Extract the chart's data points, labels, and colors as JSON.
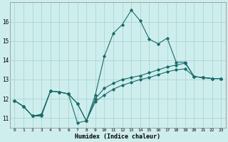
{
  "xlabel": "Humidex (Indice chaleur)",
  "background_color": "#ceeeed",
  "grid_color": "#aad4d4",
  "line_color": "#1a6b6b",
  "xlim": [
    -0.5,
    23.5
  ],
  "ylim": [
    10.5,
    17.0
  ],
  "yticks": [
    11,
    12,
    13,
    14,
    15,
    16
  ],
  "xticks": [
    0,
    1,
    2,
    3,
    4,
    5,
    6,
    7,
    8,
    9,
    10,
    11,
    12,
    13,
    14,
    15,
    16,
    17,
    18,
    19,
    20,
    21,
    22,
    23
  ],
  "line1_x": [
    0,
    1,
    2,
    3,
    4,
    5,
    6,
    7,
    8,
    9,
    10,
    11,
    12,
    13,
    14,
    15,
    16,
    17,
    18,
    19,
    20,
    21,
    22,
    23
  ],
  "line1_y": [
    11.9,
    11.6,
    11.1,
    11.2,
    12.4,
    12.35,
    12.25,
    10.75,
    10.85,
    12.2,
    14.2,
    15.4,
    15.85,
    16.6,
    16.05,
    15.1,
    14.85,
    15.15,
    13.9,
    13.9,
    13.15,
    13.1,
    13.05,
    13.05
  ],
  "line2_x": [
    0,
    1,
    2,
    3,
    4,
    5,
    6,
    7,
    8,
    9,
    10,
    11,
    12,
    13,
    14,
    15,
    16,
    17,
    18,
    19,
    20,
    21,
    22,
    23
  ],
  "line2_y": [
    11.9,
    11.6,
    11.1,
    11.15,
    12.4,
    12.35,
    12.25,
    11.75,
    10.85,
    12.0,
    12.55,
    12.8,
    13.0,
    13.1,
    13.2,
    13.35,
    13.5,
    13.65,
    13.75,
    13.85,
    13.15,
    13.1,
    13.05,
    13.05
  ],
  "line3_x": [
    0,
    1,
    2,
    3,
    4,
    5,
    6,
    7,
    8,
    9,
    10,
    11,
    12,
    13,
    14,
    15,
    16,
    17,
    18,
    19,
    20,
    21,
    22,
    23
  ],
  "line3_y": [
    11.9,
    11.6,
    11.1,
    11.1,
    12.4,
    12.35,
    12.25,
    11.75,
    10.85,
    11.85,
    12.2,
    12.5,
    12.7,
    12.85,
    13.0,
    13.1,
    13.25,
    13.4,
    13.5,
    13.55,
    13.15,
    13.1,
    13.05,
    13.05
  ],
  "figsize": [
    3.2,
    2.0
  ],
  "dpi": 100
}
